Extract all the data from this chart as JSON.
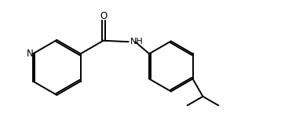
{
  "bg_color": "#ffffff",
  "line_color": "#000000",
  "line_width": 1.4,
  "font_size": 8.5,
  "figsize": [
    3.58,
    1.72
  ],
  "dpi": 100,
  "xlim": [
    0.0,
    11.0
  ],
  "ylim": [
    2.2,
    7.8
  ]
}
